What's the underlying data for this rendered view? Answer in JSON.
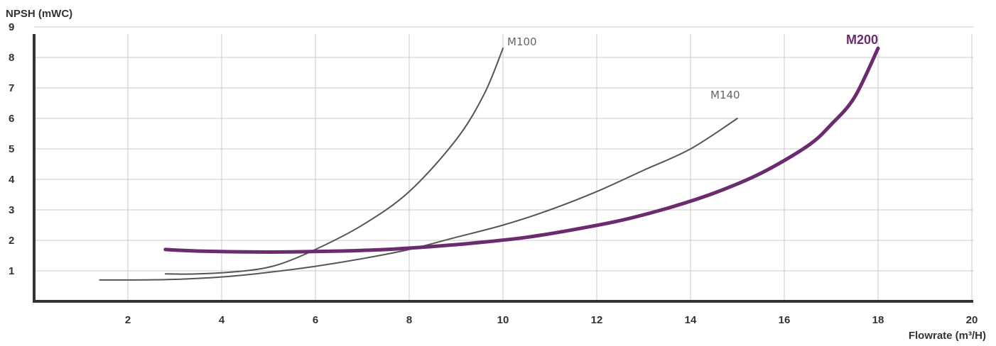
{
  "chart_data": {
    "type": "line",
    "ylabel": "NPSH (mWC)",
    "xlabel": "Flowrate (m³/H)",
    "xlim": [
      0,
      20
    ],
    "ylim": [
      0,
      9
    ],
    "x_ticks": [
      "2",
      "4",
      "6",
      "8",
      "10",
      "12",
      "14",
      "16",
      "18",
      "20"
    ],
    "y_ticks": [
      "1",
      "2",
      "3",
      "4",
      "5",
      "6",
      "7",
      "8",
      "9"
    ],
    "grid": true,
    "series": [
      {
        "name": "M100",
        "color": "#555555",
        "emphasis": false,
        "x": [
          2.8,
          3.5,
          4.5,
          5.2,
          6.0,
          7.0,
          8.0,
          9.0,
          9.6,
          10.0
        ],
        "y": [
          0.9,
          0.9,
          1.0,
          1.2,
          1.7,
          2.5,
          3.6,
          5.3,
          6.8,
          8.3
        ]
      },
      {
        "name": "M140",
        "color": "#555555",
        "emphasis": false,
        "x": [
          1.4,
          2.0,
          3.0,
          4.0,
          5.0,
          6.0,
          7.0,
          8.0,
          9.0,
          10.0,
          11.0,
          12.0,
          13.0,
          14.0,
          15.0
        ],
        "y": [
          0.7,
          0.7,
          0.72,
          0.8,
          0.95,
          1.15,
          1.4,
          1.7,
          2.1,
          2.5,
          3.0,
          3.6,
          4.3,
          5.0,
          6.0
        ]
      },
      {
        "name": "M200",
        "color": "#6b2c6f",
        "emphasis": true,
        "x": [
          2.8,
          3.5,
          4.5,
          5.5,
          6.5,
          7.5,
          8.5,
          9.5,
          10.5,
          11.5,
          12.5,
          13.5,
          14.5,
          15.5,
          16.5,
          17.0,
          17.5,
          18.0
        ],
        "y": [
          1.7,
          1.65,
          1.62,
          1.62,
          1.65,
          1.7,
          1.8,
          1.93,
          2.1,
          2.35,
          2.65,
          3.05,
          3.55,
          4.2,
          5.1,
          5.8,
          6.7,
          8.3
        ]
      }
    ]
  }
}
